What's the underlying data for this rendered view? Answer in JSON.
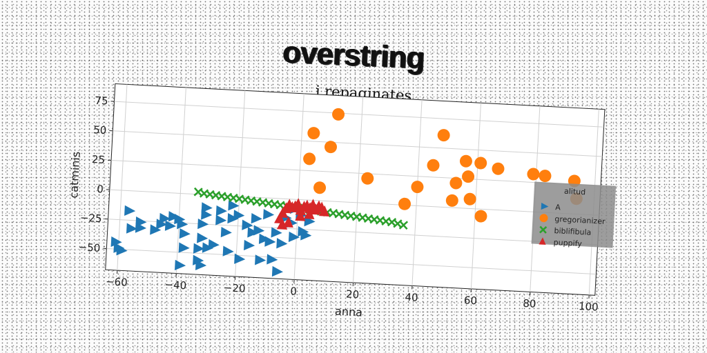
{
  "headline": "overstring",
  "chart_data": {
    "type": "scatter",
    "title": "j repaginates",
    "xlabel": "anna",
    "ylabel": "catminis",
    "xlim": [
      -64,
      102
    ],
    "ylim": [
      -68,
      90
    ],
    "xticks": [
      -60,
      -40,
      -20,
      0,
      20,
      40,
      60,
      80,
      100
    ],
    "yticks": [
      -50,
      -25,
      0,
      25,
      50,
      75
    ],
    "grid": true,
    "legend": {
      "title": "alitud",
      "placement": "right"
    },
    "series": [
      {
        "name": "A",
        "marker": "triangle-right",
        "color": "#1f77b4",
        "points": [
          [
            -61,
            -44
          ],
          [
            -59,
            -51
          ],
          [
            -60,
            -49
          ],
          [
            -57,
            -17
          ],
          [
            -56,
            -32
          ],
          [
            -53,
            -26
          ],
          [
            -53,
            -31
          ],
          [
            -48,
            -32
          ],
          [
            -46,
            -27
          ],
          [
            -45,
            -22
          ],
          [
            -43,
            -28
          ],
          [
            -42,
            -20
          ],
          [
            -40,
            -22
          ],
          [
            -39,
            -26
          ],
          [
            -38,
            -34
          ],
          [
            -38,
            -46
          ],
          [
            -39,
            -61
          ],
          [
            -32,
            -25
          ],
          [
            -32,
            -37
          ],
          [
            -33,
            -46
          ],
          [
            -33,
            -56
          ],
          [
            -32,
            -60
          ],
          [
            -31,
            -11
          ],
          [
            -31,
            -17
          ],
          [
            -30,
            -45
          ],
          [
            -28,
            -42
          ],
          [
            -26,
            -13
          ],
          [
            -26,
            -21
          ],
          [
            -24,
            -31
          ],
          [
            -23,
            -47
          ],
          [
            -22,
            -8
          ],
          [
            -22,
            -19
          ],
          [
            -20,
            -16
          ],
          [
            -19,
            -53
          ],
          [
            -17,
            -24
          ],
          [
            -16,
            -41
          ],
          [
            -14,
            -18
          ],
          [
            -13,
            -28
          ],
          [
            -12,
            -53
          ],
          [
            -11,
            -35
          ],
          [
            -10,
            -14
          ],
          [
            -9,
            -37
          ],
          [
            -8,
            -52
          ],
          [
            -7,
            -29
          ],
          [
            -6,
            -62
          ],
          [
            -5,
            -38
          ],
          [
            -4,
            -16
          ],
          [
            -2,
            -20
          ],
          [
            -1,
            -32
          ],
          [
            -1,
            -8
          ],
          [
            1,
            -13
          ],
          [
            2,
            -27
          ],
          [
            3,
            -30
          ],
          [
            4,
            -18
          ],
          [
            -15,
            -30
          ]
        ]
      },
      {
        "name": "gregorianizer",
        "marker": "circle",
        "color": "#ff7f0e",
        "points": [
          [
            4,
            57
          ],
          [
            3,
            35
          ],
          [
            7,
            11
          ],
          [
            10,
            46
          ],
          [
            12,
            74
          ],
          [
            23,
            21
          ],
          [
            36,
            1
          ],
          [
            40,
            16
          ],
          [
            45,
            35
          ],
          [
            48,
            61
          ],
          [
            52,
            6
          ],
          [
            53,
            21
          ],
          [
            56,
            40
          ],
          [
            57,
            27
          ],
          [
            58,
            8
          ],
          [
            61,
            39
          ],
          [
            62,
            -6
          ],
          [
            67,
            35
          ],
          [
            79,
            32
          ],
          [
            83,
            31
          ],
          [
            93,
            28
          ],
          [
            94,
            13
          ]
        ]
      },
      {
        "name": "biblifibula",
        "marker": "x",
        "color": "#2ca02c",
        "points": [
          [
            -34,
            2
          ],
          [
            -32,
            1
          ],
          [
            -30,
            0.5
          ],
          [
            -28,
            0
          ],
          [
            -26,
            -0.5
          ],
          [
            -24,
            -1
          ],
          [
            -22,
            -1.5
          ],
          [
            -20,
            -2
          ],
          [
            -18,
            -2.5
          ],
          [
            -16,
            -3
          ],
          [
            -14,
            -3.5
          ],
          [
            -12,
            -4
          ],
          [
            -10,
            -4.5
          ],
          [
            -8,
            -5
          ],
          [
            -6,
            -5.5
          ],
          [
            -4,
            -6
          ],
          [
            -2,
            -6.5
          ],
          [
            0,
            -7
          ],
          [
            2,
            -7.5
          ],
          [
            4,
            -8
          ],
          [
            6,
            -8.5
          ],
          [
            8,
            -9
          ],
          [
            10,
            -9.5
          ],
          [
            12,
            -10
          ],
          [
            14,
            -10.5
          ],
          [
            16,
            -11
          ],
          [
            18,
            -11.5
          ],
          [
            20,
            -12
          ],
          [
            22,
            -12.5
          ],
          [
            24,
            -13
          ],
          [
            26,
            -13.5
          ],
          [
            28,
            -14
          ],
          [
            30,
            -14.5
          ],
          [
            32,
            -15
          ],
          [
            34,
            -16
          ],
          [
            36,
            -17
          ]
        ]
      },
      {
        "name": "puppify",
        "marker": "triangle-up",
        "color": "#d62728",
        "points": [
          [
            -6,
            -17
          ],
          [
            -5,
            -12
          ],
          [
            -4,
            -8
          ],
          [
            -3,
            -5
          ],
          [
            -2,
            -7
          ],
          [
            -1,
            -6
          ],
          [
            0,
            -4
          ],
          [
            1,
            -9
          ],
          [
            2,
            -6
          ],
          [
            3,
            -5
          ],
          [
            4,
            -7
          ],
          [
            5,
            -4
          ],
          [
            6,
            -8
          ],
          [
            7,
            -5
          ],
          [
            8,
            -6
          ],
          [
            9,
            -9
          ],
          [
            -5,
            -22
          ],
          [
            -3,
            -20
          ],
          [
            1,
            -14
          ],
          [
            4,
            -12
          ]
        ]
      }
    ]
  }
}
